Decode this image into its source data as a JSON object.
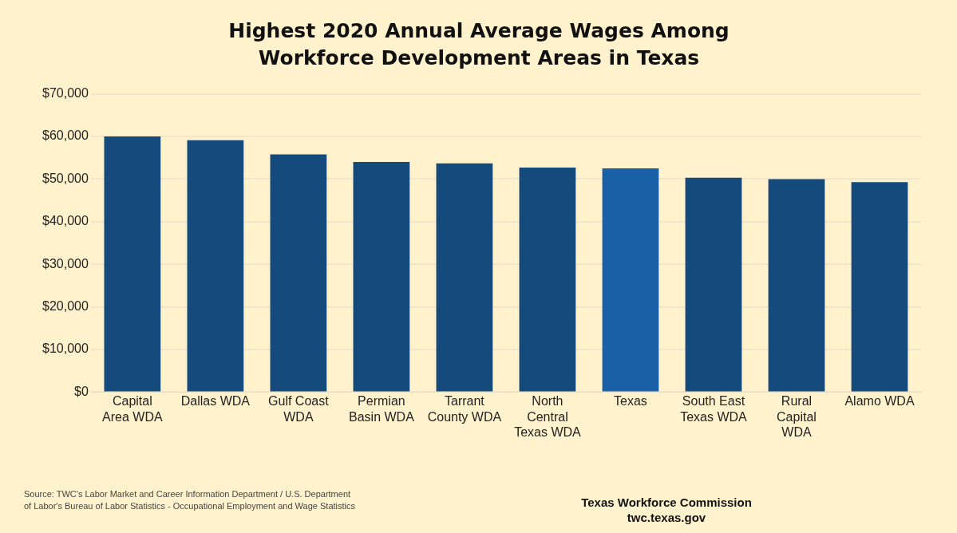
{
  "chart_data": {
    "type": "bar",
    "title": "Highest 2020 Annual Average Wages Among Workforce Development Areas in Texas",
    "categories": [
      "Capital Area WDA",
      "Dallas WDA",
      "Gulf Coast WDA",
      "Permian Basin WDA",
      "Tarrant County WDA",
      "North Central Texas WDA",
      "Texas",
      "South East Texas WDA",
      "Rural Capital WDA",
      "Alamo WDA"
    ],
    "values": [
      60000,
      59100,
      55800,
      54000,
      53700,
      52700,
      52500,
      50300,
      50000,
      49300
    ],
    "colors": [
      "#154a7c",
      "#154a7c",
      "#154a7c",
      "#154a7c",
      "#154a7c",
      "#154a7c",
      "#1a60a7",
      "#154a7c",
      "#154a7c",
      "#154a7c"
    ],
    "ylim": [
      0,
      70000
    ],
    "yticks": [
      {
        "value": 0,
        "label": "$0"
      },
      {
        "value": 10000,
        "label": "$10,000"
      },
      {
        "value": 20000,
        "label": "$20,000"
      },
      {
        "value": 30000,
        "label": "$30,000"
      },
      {
        "value": 40000,
        "label": "$40,000"
      },
      {
        "value": 50000,
        "label": "$50,000"
      },
      {
        "value": 60000,
        "label": "$60,000"
      },
      {
        "value": 70000,
        "label": "$70,000"
      }
    ],
    "grid": "y",
    "annotations": [
      "Source: TWC's Labor Market and Career Information Department / U.S. Department of Labor's Bureau of Labor Statistics - Occupational Employment and Wage Statistics",
      "Texas Workforce Commission",
      "twc.texas.gov"
    ]
  }
}
